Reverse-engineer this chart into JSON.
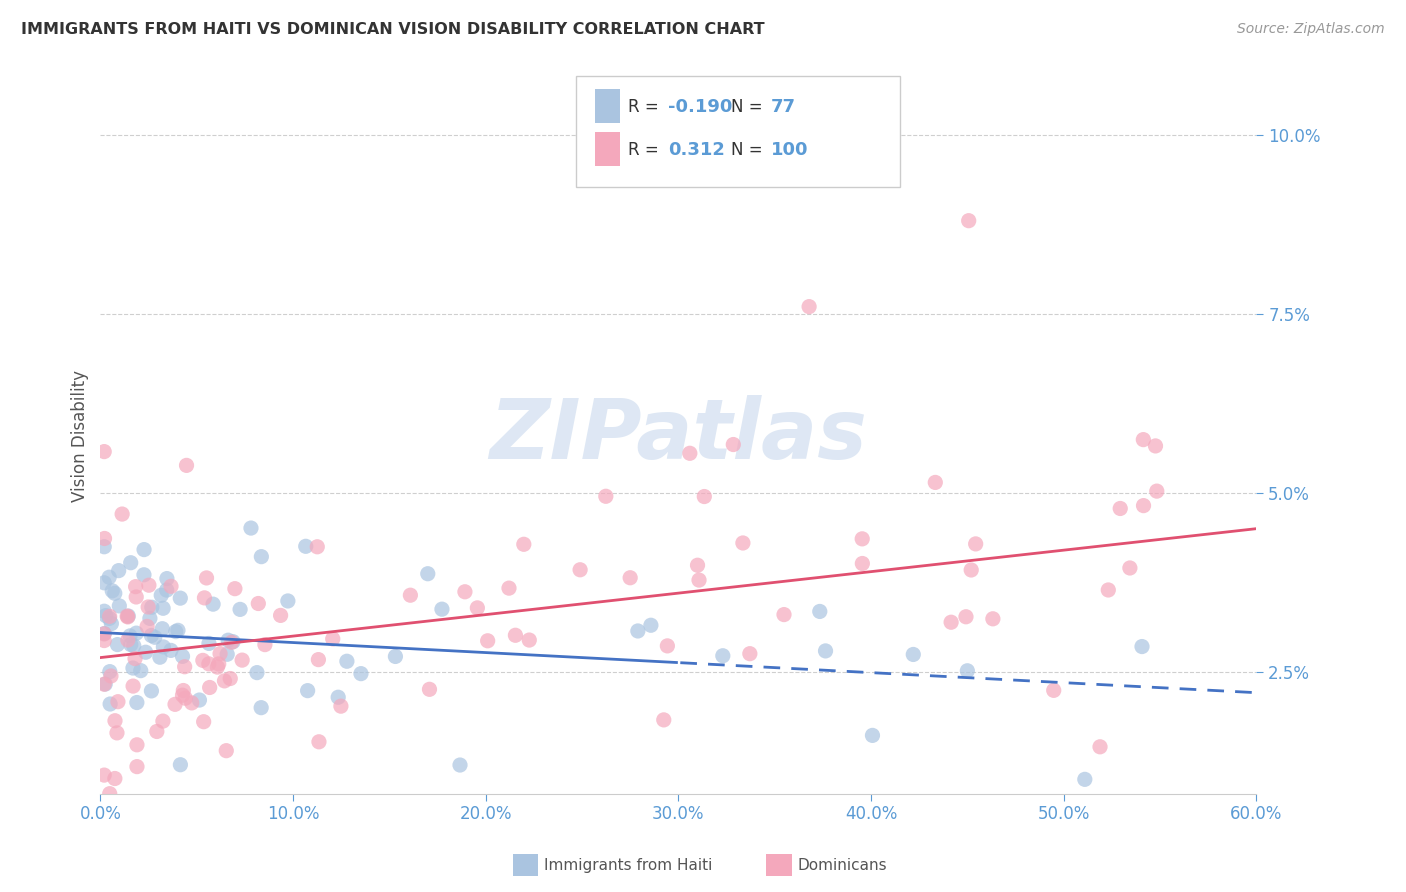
{
  "title": "IMMIGRANTS FROM HAITI VS DOMINICAN VISION DISABILITY CORRELATION CHART",
  "source": "Source: ZipAtlas.com",
  "ylabel": "Vision Disability",
  "ytick_labels": [
    "2.5%",
    "5.0%",
    "7.5%",
    "10.0%"
  ],
  "ytick_values": [
    0.025,
    0.05,
    0.075,
    0.1
  ],
  "xlim": [
    0.0,
    0.6
  ],
  "ylim": [
    0.008,
    0.108
  ],
  "haiti_R": "-0.190",
  "haiti_N": "77",
  "dominican_R": "0.312",
  "dominican_N": "100",
  "haiti_color": "#aac4e0",
  "dominican_color": "#f4a8bc",
  "haiti_line_color": "#4472c4",
  "dominican_line_color": "#e05070",
  "background_color": "#ffffff",
  "grid_color": "#bbbbbb",
  "title_color": "#333333",
  "axis_color": "#5b9bd5",
  "watermark_color": "#c8d8ed",
  "legend_box_edge": "#cccccc",
  "haiti_line_intercept": 0.0305,
  "haiti_line_slope": -0.014,
  "dominican_line_intercept": 0.027,
  "dominican_line_slope": 0.03
}
